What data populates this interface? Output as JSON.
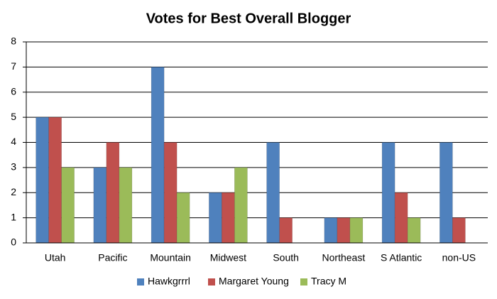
{
  "chart_data": {
    "type": "bar",
    "title": "Votes for Best Overall Blogger",
    "categories": [
      "Utah",
      "Pacific",
      "Mountain",
      "Midwest",
      "South",
      "Northeast",
      "S Atlantic",
      "non-US"
    ],
    "series": [
      {
        "name": "Hawkgrrrl",
        "color": "#4f81bd",
        "values": [
          5,
          3,
          7,
          2,
          4,
          1,
          4,
          4
        ]
      },
      {
        "name": "Margaret Young",
        "color": "#c0504d",
        "values": [
          5,
          4,
          4,
          2,
          1,
          1,
          2,
          1
        ]
      },
      {
        "name": "Tracy M",
        "color": "#9bbb59",
        "values": [
          3,
          3,
          2,
          3,
          0,
          1,
          1,
          0
        ]
      }
    ],
    "ylim": [
      0,
      8
    ],
    "yticks": [
      0,
      1,
      2,
      3,
      4,
      5,
      6,
      7,
      8
    ],
    "grid": true,
    "legend": "bottom"
  }
}
